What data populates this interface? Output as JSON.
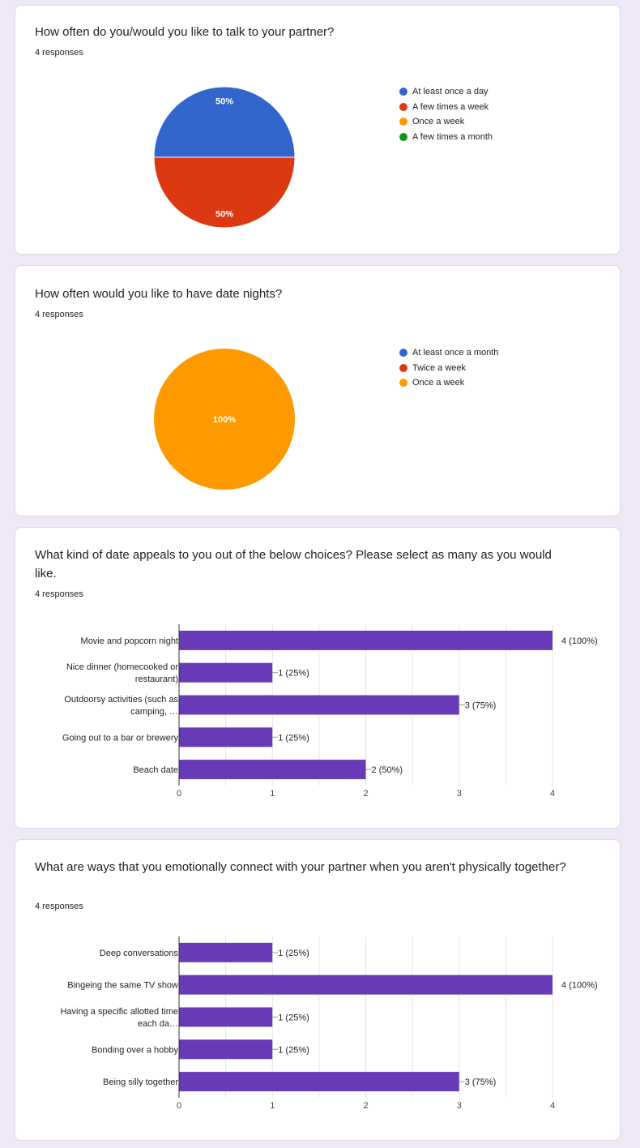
{
  "colors": {
    "blue": "#3366cc",
    "red": "#dc3912",
    "orange": "#ff9900",
    "green": "#109618",
    "purple": "#673ab7",
    "page_bg": "#ede7f6"
  },
  "questions": [
    {
      "title": "How often do you/would you like to talk to your partner?",
      "responses": "4 responses",
      "legend": [
        {
          "label": "At least once a day",
          "color": "#3366cc"
        },
        {
          "label": "A few times a week",
          "color": "#dc3912"
        },
        {
          "label": "Once a week",
          "color": "#ff9900"
        },
        {
          "label": "A few times a month",
          "color": "#109618"
        }
      ]
    },
    {
      "title": "How often would you like to have date nights?",
      "responses": "4 responses",
      "legend": [
        {
          "label": "At least once a month",
          "color": "#3366cc"
        },
        {
          "label": "Twice a week",
          "color": "#dc3912"
        },
        {
          "label": "Once a week",
          "color": "#ff9900"
        }
      ]
    },
    {
      "title": "What kind of date appeals to you out of the below choices? Please select as many as you would like.",
      "responses": "4 responses"
    },
    {
      "title": "What are ways that you emotionally connect with your partner when you aren't physically together?",
      "responses": "4 responses"
    }
  ],
  "chart_data": [
    {
      "type": "pie",
      "categories": [
        "At least once a day",
        "A few times a week",
        "Once a week",
        "A few times a month"
      ],
      "values": [
        50,
        50,
        0,
        0
      ],
      "labels": [
        "50%",
        "50%",
        "",
        ""
      ]
    },
    {
      "type": "pie",
      "categories": [
        "At least once a month",
        "Twice a week",
        "Once a week"
      ],
      "values": [
        0,
        0,
        100
      ],
      "labels": [
        "",
        "",
        "100%"
      ]
    },
    {
      "type": "bar",
      "orientation": "horizontal",
      "categories": [
        [
          "Movie and popcorn night"
        ],
        [
          "Nice dinner (homecooked or",
          "restaurant)"
        ],
        [
          "Outdoorsy activities (such as",
          "camping, …"
        ],
        [
          "Going out to a bar or brewery"
        ],
        [
          "Beach date"
        ]
      ],
      "values": [
        4,
        1,
        3,
        1,
        2
      ],
      "value_labels": [
        "4 (100%)",
        "1 (25%)",
        "3 (75%)",
        "1 (25%)",
        "2 (50%)"
      ],
      "xlim": [
        0,
        4
      ],
      "xticks": [
        "0",
        "1",
        "2",
        "3",
        "4"
      ],
      "grid": true
    },
    {
      "type": "bar",
      "orientation": "horizontal",
      "categories": [
        [
          "Deep conversations"
        ],
        [
          "Bingeing the same TV show"
        ],
        [
          "Having a specific allotted time",
          "each da…"
        ],
        [
          "Bonding over a hobby"
        ],
        [
          "Being silly together"
        ]
      ],
      "values": [
        1,
        4,
        1,
        1,
        3
      ],
      "value_labels": [
        "1 (25%)",
        "4 (100%)",
        "1 (25%)",
        "1 (25%)",
        "3 (75%)"
      ],
      "xlim": [
        0,
        4
      ],
      "xticks": [
        "0",
        "1",
        "2",
        "3",
        "4"
      ],
      "grid": true
    }
  ]
}
